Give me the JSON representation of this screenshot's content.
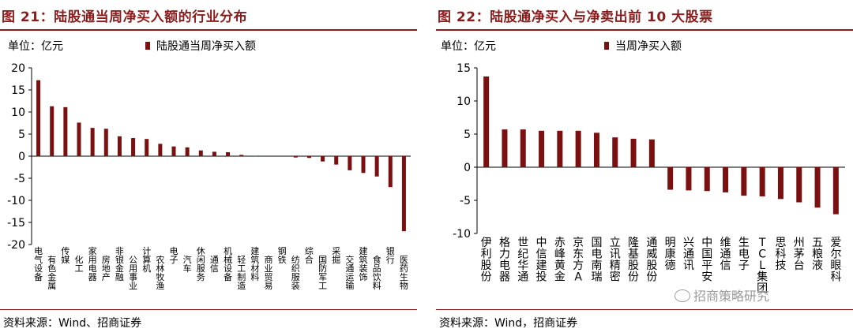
{
  "panels": [
    {
      "title": "图 21：陆股通当周净买入额的行业分布",
      "unit": "单位：亿元",
      "source": "资料来源：Wind、招商证券"
    },
    {
      "title": "图 22：陆股通净买入与净卖出前 10 大股票",
      "unit": "单位：亿元",
      "source": "资料来源：Wind，招商证券",
      "watermark": "招商策略研究"
    }
  ],
  "colors": {
    "bar": "#7a1010",
    "title": "#8c1c1c",
    "axis": "#000000"
  },
  "chart_data": [
    {
      "type": "bar",
      "legend": [
        "陆股通当周净买入额"
      ],
      "legend_position": "top",
      "ylim": [
        -20,
        20
      ],
      "yticks": [
        -20,
        -15,
        -10,
        -5,
        0,
        5,
        10,
        15,
        20
      ],
      "grid": false,
      "categories": [
        "电气设备",
        "有色金属",
        "传媒",
        "化工",
        "家用电器",
        "房地产",
        "非银金融",
        "公用事业",
        "计算机",
        "农林牧渔",
        "电子",
        "汽车",
        "休闲服务",
        "通信",
        "机械设备",
        "轻工制造",
        "建筑材料",
        "商业贸易",
        "钢铁",
        "纺织服装",
        "综合",
        "国防军工",
        "采掘",
        "交通运输",
        "建筑装饰",
        "食品饮料",
        "银行",
        "医药生物"
      ],
      "series": [
        {
          "name": "陆股通当周净买入额",
          "values": [
            17.2,
            11.3,
            11.1,
            7.6,
            6.4,
            6.2,
            4.5,
            4.1,
            3.9,
            2.8,
            2.2,
            2.0,
            1.3,
            1.0,
            0.9,
            0.3,
            0.05,
            0.0,
            0.0,
            -0.3,
            -0.4,
            -1.2,
            -1.9,
            -3.2,
            -3.8,
            -4.6,
            -7.0,
            -17.0
          ]
        }
      ]
    },
    {
      "type": "bar",
      "legend": [
        "当周净买入额"
      ],
      "legend_position": "top",
      "ylim": [
        -10,
        15
      ],
      "yticks": [
        -10,
        -5,
        0,
        5,
        10,
        15
      ],
      "grid": false,
      "categories": [
        "伊利股份",
        "格力电器",
        "世纪华通",
        "中信建投",
        "赤峰黄金",
        "京东方A",
        "国电南瑞",
        "立讯精密",
        "隆基股份",
        "通威股份",
        "明康德",
        "兴通讯",
        "中国平安",
        "维通信",
        "生电子",
        "TCL集团",
        "思科技",
        "州茅台",
        "五粮液",
        "爱尔眼科"
      ],
      "series": [
        {
          "name": "当周净买入额",
          "values": [
            13.7,
            5.7,
            5.7,
            5.5,
            5.5,
            5.5,
            5.2,
            4.5,
            4.3,
            4.2,
            -3.4,
            -3.5,
            -3.6,
            -3.8,
            -4.3,
            -4.4,
            -4.8,
            -5.3,
            -6.1,
            -7.1
          ]
        }
      ]
    }
  ]
}
